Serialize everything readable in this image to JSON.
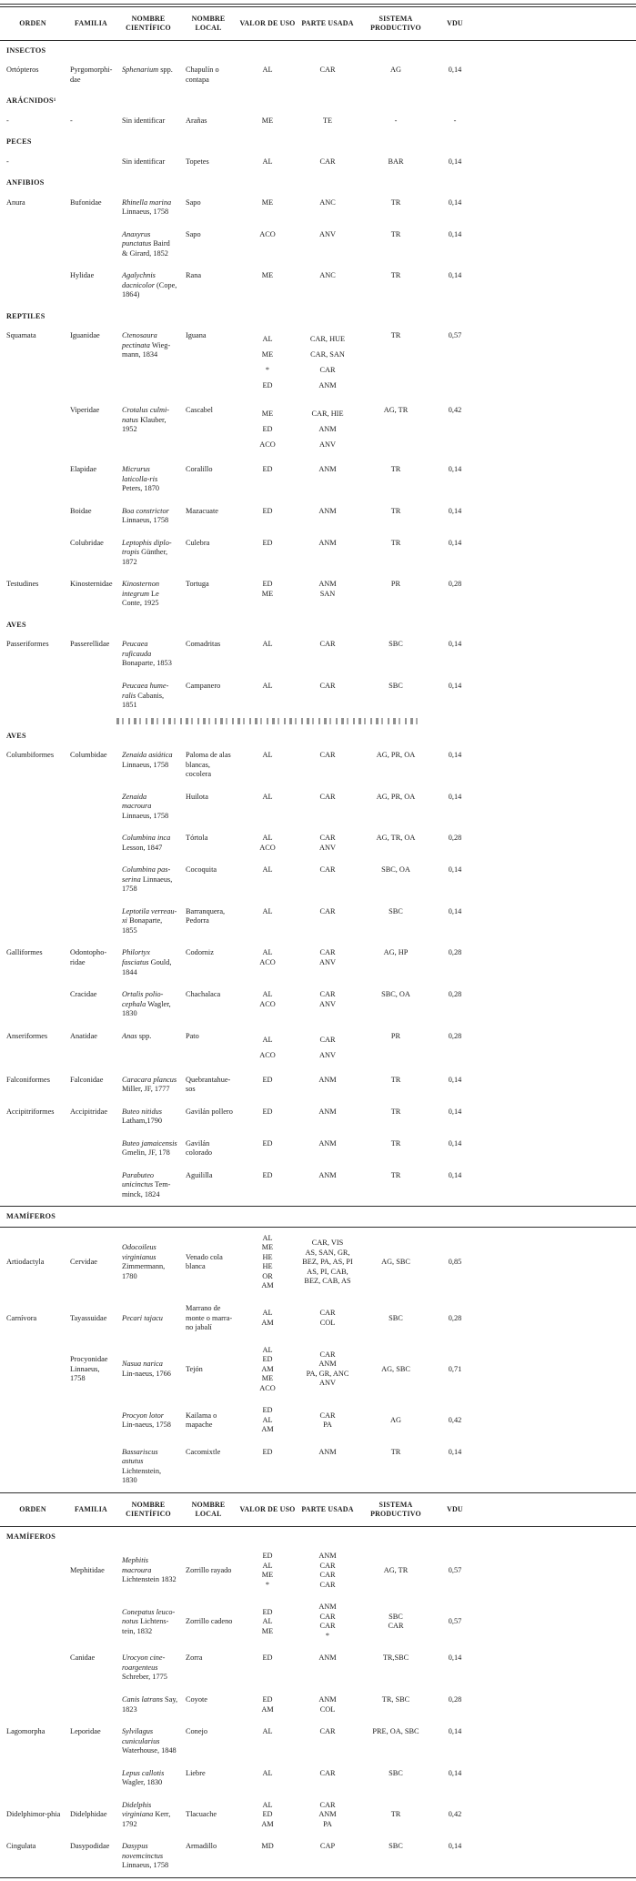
{
  "table": {
    "columns": [
      "ORDEN",
      "FAMILIA",
      "NOMBRE CIENTÍFICO",
      "NOMBRE LOCAL",
      "VALOR DE USO",
      "PARTE USADA",
      "SISTEMA PRODUCTIVO",
      "VDU"
    ],
    "rows": [
      {
        "t": "sec",
        "label": "INSECTOS"
      },
      {
        "t": "row",
        "or": "Ortópteros",
        "fa": "Pyrgomorphi-dae",
        "si": "Sphenarium",
        "sa": "spp.",
        "lo": "Chapulín o contapa",
        "va": "AL",
        "pa": "CAR",
        "sp": "AG",
        "vd": "0,14"
      },
      {
        "t": "sec",
        "label": "ARÁCNIDOS¹"
      },
      {
        "t": "row",
        "or": "-",
        "fa": "-",
        "si": "",
        "sa": "Sin identificar",
        "lo": "Arañas",
        "va": "ME",
        "pa": "TE",
        "sp": "-",
        "vd": "-"
      },
      {
        "t": "sec",
        "label": "PECES"
      },
      {
        "t": "row",
        "or": "-",
        "fa": "",
        "si": "",
        "sa": "Sin identificar",
        "lo": "Topetes",
        "va": "AL",
        "pa": "CAR",
        "sp": "BAR",
        "vd": "0,14"
      },
      {
        "t": "sec",
        "label": "ANFIBIOS"
      },
      {
        "t": "row",
        "or": "Anura",
        "fa": "Bufonidae",
        "si": "Rhinella marina",
        "sa": "Linnaeus, 1758",
        "lo": "Sapo",
        "va": "ME",
        "pa": "ANC",
        "sp": "TR",
        "vd": "0,14"
      },
      {
        "t": "row",
        "or": "",
        "fa": "",
        "si": "Anaxyrus punctatus",
        "sa": "Baird & Girard, 1852",
        "lo": "Sapo",
        "va": "ACO",
        "pa": "ANV",
        "sp": "TR",
        "vd": "0,14"
      },
      {
        "t": "row",
        "or": "",
        "fa": "Hylidae",
        "si": "Agalychnis dacnicolor",
        "sa": "(Cope, 1864)",
        "lo": "Rana",
        "va": "ME",
        "pa": "ANC",
        "sp": "TR",
        "vd": "0,14"
      },
      {
        "t": "sec",
        "label": "REPTILES"
      },
      {
        "t": "row",
        "spread": true,
        "or": "Squamata",
        "fa": "Iguanidae",
        "si": "Ctenosaura pectinata",
        "sa": "Wieg-mann, 1834",
        "lo": "Iguana",
        "va": "AL\nME\n*\nED",
        "pa": "CAR, HUE\nCAR, SAN\nCAR\nANM",
        "sp": "TR",
        "vd": "0,57"
      },
      {
        "t": "row",
        "spread": true,
        "or": "",
        "fa": "Viperidae",
        "si": "Crotalus culmi-natus",
        "sa": "Klauber, 1952",
        "lo": "Cascabel",
        "va": "ME\nED\nACO",
        "pa": "CAR, HIE\nANM\nANV",
        "sp": "AG, TR",
        "vd": "0,42"
      },
      {
        "t": "row",
        "or": "",
        "fa": "Elapidae",
        "si": "Micrurus laticolla-ris",
        "sa": "Peters, 1870",
        "lo": "Coralillo",
        "va": "ED",
        "pa": "ANM",
        "sp": "TR",
        "vd": "0,14"
      },
      {
        "t": "row",
        "or": "",
        "fa": "Boidae",
        "si": "Boa constrictor",
        "sa": "Linnaeus, 1758",
        "lo": "Mazacuate",
        "va": "ED",
        "pa": "ANM",
        "sp": "TR",
        "vd": "0,14"
      },
      {
        "t": "row",
        "or": "",
        "fa": "Colubridae",
        "si": "Leptophis diplo-tropis",
        "sa": "Günther, 1872",
        "lo": "Culebra",
        "va": "ED",
        "pa": "ANM",
        "sp": "TR",
        "vd": "0,14"
      },
      {
        "t": "row",
        "or": "Testudines",
        "fa": "Kinosternidae",
        "si": "Kinosternon integrum",
        "sa": "Le Conte, 1925",
        "lo": "Tortuga",
        "va": "ED\nME",
        "pa": "ANM\nSAN",
        "sp": "PR",
        "vd": "0,28"
      },
      {
        "t": "sec",
        "label": "AVES"
      },
      {
        "t": "row",
        "or": "Passeriformes",
        "fa": "Passerellidae",
        "si": "Peucaea ruficauda",
        "sa": "Bonaparte, 1853",
        "lo": "Comadritas",
        "va": "AL",
        "pa": "CAR",
        "sp": "SBC",
        "vd": "0,14"
      },
      {
        "t": "row",
        "or": "",
        "fa": "",
        "si": "Peucaea hume-ralis",
        "sa": "Cabanis, 1851",
        "lo": "Campanero",
        "va": "AL",
        "pa": "CAR",
        "sp": "SBC",
        "vd": "0,14"
      },
      {
        "t": "cut"
      },
      {
        "t": "sec",
        "label": "AVES"
      },
      {
        "t": "row",
        "or": "Columbiformes",
        "fa": "Columbidae",
        "si": "Zenaida asiática",
        "sa": "Linnaeus, 1758",
        "lo": "Paloma de alas blancas, cocolera",
        "va": "AL",
        "pa": "CAR",
        "sp": "AG, PR, OA",
        "vd": "0,14"
      },
      {
        "t": "row",
        "or": "",
        "fa": "",
        "si": "Zenaida macroura",
        "sa": "Linnaeus, 1758",
        "lo": "Huilota",
        "va": "AL",
        "pa": "CAR",
        "sp": "AG, PR, OA",
        "vd": "0,14"
      },
      {
        "t": "row",
        "or": "",
        "fa": "",
        "si": "Columbina inca",
        "sa": "Lesson, 1847",
        "lo": "Tórtola",
        "va": "AL\nACO",
        "pa": "CAR\nANV",
        "sp": "AG, TR, OA",
        "vd": "0,28"
      },
      {
        "t": "row",
        "or": "",
        "fa": "",
        "si": "Columbina pas-serina",
        "sa": "Linnaeus, 1758",
        "lo": "Cocoquita",
        "va": "AL",
        "pa": "CAR",
        "sp": "SBC, OA",
        "vd": "0,14"
      },
      {
        "t": "row",
        "or": "",
        "fa": "",
        "si": "Leptotila verreau-xi",
        "sa": "Bonaparte, 1855",
        "lo": "Barranquera, Pedorra",
        "va": "AL",
        "pa": "CAR",
        "sp": "SBC",
        "vd": "0,14"
      },
      {
        "t": "row",
        "or": "Galliformes",
        "fa": "Odontopho-ridae",
        "si": "Philortyx fasciatus",
        "sa": "Gould, 1844",
        "lo": "Codorniz",
        "va": "AL\nACO",
        "pa": "CAR\nANV",
        "sp": "AG, HP",
        "vd": "0,28"
      },
      {
        "t": "row",
        "or": "",
        "fa": "Cracidae",
        "si": "Ortalis polio-cephala",
        "sa": "Wagler, 1830",
        "lo": "Chachalaca",
        "va": "AL\nACO",
        "pa": "CAR\nANV",
        "sp": "SBC, OA",
        "vd": "0,28"
      },
      {
        "t": "row",
        "spread": true,
        "or": "Anseriformes",
        "fa": "Anatidae",
        "si": "Anas",
        "sa": "spp.",
        "lo": "Pato",
        "va": "AL\nACO",
        "pa": "CAR\nANV",
        "sp": "PR",
        "vd": "0,28"
      },
      {
        "t": "row",
        "or": "Falconiformes",
        "fa": "Falconidae",
        "si": "Caracara plancus",
        "sa": "Miller, JF, 1777",
        "lo": "Quebrantahue-sos",
        "va": "ED",
        "pa": "ANM",
        "sp": "TR",
        "vd": "0,14"
      },
      {
        "t": "row",
        "or": "Accipitriformes",
        "fa": "Accipitridae",
        "si": "Buteo nitidus",
        "sa": "Latham,1790",
        "lo": "Gavilán pollero",
        "va": "ED",
        "pa": "ANM",
        "sp": "TR",
        "vd": "0,14"
      },
      {
        "t": "row",
        "or": "",
        "fa": "",
        "si": "Buteo jamaicensis",
        "sa": "Gmelin, JF, 178",
        "lo": "Gavilán colorado",
        "va": "ED",
        "pa": "ANM",
        "sp": "TR",
        "vd": "0,14"
      },
      {
        "t": "row",
        "or": "",
        "fa": "",
        "si": "Parabuteo unicinctus",
        "sa": "Tem-minck, 1824",
        "lo": "Aguililla",
        "va": "ED",
        "pa": "ANM",
        "sp": "TR",
        "vd": "0,14"
      },
      {
        "t": "sec",
        "label": "MAMÍFEROS",
        "band": true
      },
      {
        "t": "row",
        "vmid": true,
        "or": "Artiodactyla",
        "fa": "Cervidae",
        "si": "Odocoileus virginianus",
        "sa": "Zimmermann, 1780",
        "lo": "Venado cola blanca",
        "va": "AL\nME\nHE\nHE\nOR\nAM",
        "pa": "CAR, VIS\nAS, SAN, GR,\nBEZ, PA, AS, PI\nAS, PI, CAB,\nBEZ, CAB, AS",
        "sp": "AG, SBC",
        "vd": "0,85"
      },
      {
        "t": "row",
        "vmid": true,
        "or": "Carnívora",
        "fa": "Tayassuidae",
        "si": "Pecari tajacu",
        "sa": "",
        "lo": "Marrano de monte o marra-no jabalí",
        "va": "AL\nAM",
        "pa": "CAR\nCOL",
        "sp": "SBC",
        "vd": "0,28"
      },
      {
        "t": "row",
        "vmid": true,
        "or": "",
        "fa": "Procyonidae Linnaeus, 1758",
        "si": "Nasua narica",
        "sa": "Lin-naeus, 1766",
        "lo": "Tejón",
        "va": "AL\nED\nAM\nME\nACO",
        "pa": "CAR\nANM\nPA, GR, ANC\nANV",
        "sp": "AG, SBC",
        "vd": "0,71"
      },
      {
        "t": "row",
        "vmid": true,
        "or": "",
        "fa": "",
        "si": "Procyon lotor",
        "sa": "Lin-naeus, 1758",
        "lo": "Kailama o mapache",
        "va": "ED\nAL\nAM",
        "pa": "CAR\nPA",
        "sp": "AG",
        "vd": "0,42"
      },
      {
        "t": "row",
        "or": "",
        "fa": "",
        "si": "Bassariscus astutus",
        "sa": "Lichtenstein, 1830",
        "lo": "Cacomixtle",
        "va": "ED",
        "pa": "ANM",
        "sp": "TR",
        "vd": "0,14"
      },
      {
        "t": "head"
      },
      {
        "t": "sec",
        "label": "MAMÍFEROS"
      },
      {
        "t": "row",
        "vmid": true,
        "or": "",
        "fa": "Mephitidae",
        "si": "Mephitis macroura",
        "sa": "Lichtenstein 1832",
        "lo": "Zorrillo rayado",
        "va": "ED\nAL\nME\n*",
        "pa": "ANM\nCAR\nCAR\nCAR",
        "sp": "AG, TR",
        "vd": "0,57"
      },
      {
        "t": "row",
        "vmid": true,
        "or": "",
        "fa": "",
        "si": "Conepatus leuco-notus",
        "sa": "Lichtens-tein, 1832",
        "lo": "Zorrillo cadeno",
        "va": "ED\nAL\nME",
        "pa": "ANM\nCAR\nCAR\n*",
        "sp": "SBC\nCAR",
        "vd": "0,57"
      },
      {
        "t": "row",
        "or": "",
        "fa": "Canidae",
        "si": "Urocyon cine-roargenteus",
        "sa": "Schreber, 1775",
        "lo": "Zorra",
        "va": "ED",
        "pa": "ANM",
        "sp": "TR,SBC",
        "vd": "0,14"
      },
      {
        "t": "row",
        "or": "",
        "fa": "",
        "si": "Canis latrans",
        "sa": "Say, 1823",
        "lo": "Coyote",
        "va": "ED\nAM",
        "pa": "ANM\nCOL",
        "sp": "TR, SBC",
        "vd": "0,28"
      },
      {
        "t": "row",
        "or": "Lagomorpha",
        "fa": "Leporidae",
        "si": "Sylvilagus cunicularius",
        "sa": "Waterhouse, 1848",
        "lo": "Conejo",
        "va": "AL",
        "pa": "CAR",
        "sp": "PRE, OA, SBC",
        "vd": "0,14"
      },
      {
        "t": "row",
        "or": "",
        "fa": "",
        "si": "Lepus callotis",
        "sa": "Wagler, 1830",
        "lo": "Liebre",
        "va": "AL",
        "pa": "CAR",
        "sp": "SBC",
        "vd": "0,14"
      },
      {
        "t": "row",
        "vmid": true,
        "or": "Didelphimor-phia",
        "fa": "Didelphidae",
        "si": "Didelphis virginiana",
        "sa": "Kerr, 1792",
        "lo": "Tlacuache",
        "va": "AL\nED\nAM",
        "pa": "CAR\nANM\nPA",
        "sp": "TR",
        "vd": "0,42"
      },
      {
        "t": "row",
        "or": "Cingulata",
        "fa": "Dasypodidae",
        "si": "Dasypus novemcinctus",
        "sa": "Linnaeus, 1758",
        "lo": "Armadillo",
        "va": "MD",
        "pa": "CAP",
        "sp": "SBC",
        "vd": "0,14"
      }
    ]
  }
}
